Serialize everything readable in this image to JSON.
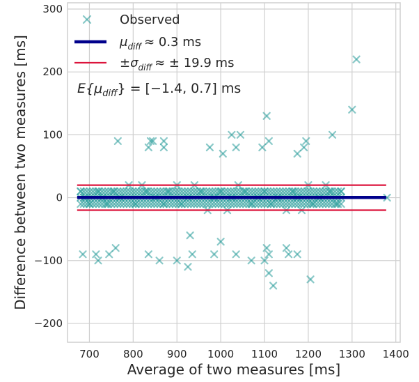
{
  "chart_data": {
    "type": "scatter",
    "xlabel": "Average of two measures [ms]",
    "ylabel": "Difference between two measures [ms]",
    "xlim": [
      650,
      1410
    ],
    "ylim": [
      -230,
      310
    ],
    "xticks": [
      700,
      800,
      900,
      1000,
      1100,
      1200,
      1300,
      1400
    ],
    "yticks": [
      -200,
      -100,
      0,
      100,
      200,
      300
    ],
    "grid": true,
    "legend_placement": "top-left",
    "colors": {
      "points": "#2a9d9b",
      "mean_line": "#00008b",
      "sd_lines": "#dc143c",
      "grid": "#cfcfcf",
      "frame": "#cfcfcf"
    },
    "legend": [
      {
        "marker": "x",
        "label": "Observed"
      },
      {
        "marker": "thick-line",
        "label_main": "μ",
        "label_sub": "diff",
        "label_rest": "≈ 0.3 ms"
      },
      {
        "marker": "thin-line",
        "label_pre": "±σ",
        "label_sub": "diff",
        "label_rest": "≈ ± 19.9 ms"
      }
    ],
    "annotation": {
      "pre": "E{μ",
      "sub": "diff",
      "post": "} = [−1.4, 0.7] ms"
    },
    "mean_diff": 0.3,
    "sd_diff": 19.9,
    "line_x_range": [
      672,
      1378
    ],
    "series": [
      {
        "name": "Observed",
        "outliers": [
          [
            1310,
            220
          ],
          [
            1300,
            140
          ],
          [
            1105,
            130
          ],
          [
            1255,
            100
          ],
          [
            1025,
            100
          ],
          [
            1045,
            100
          ],
          [
            765,
            90
          ],
          [
            840,
            90
          ],
          [
            845,
            90
          ],
          [
            870,
            90
          ],
          [
            1110,
            90
          ],
          [
            1195,
            90
          ],
          [
            1190,
            80
          ],
          [
            835,
            80
          ],
          [
            870,
            80
          ],
          [
            975,
            80
          ],
          [
            1035,
            80
          ],
          [
            1095,
            80
          ],
          [
            1005,
            70
          ],
          [
            1175,
            70
          ],
          [
            930,
            -60
          ],
          [
            1000,
            -70
          ],
          [
            685,
            -90
          ],
          [
            715,
            -90
          ],
          [
            745,
            -90
          ],
          [
            835,
            -90
          ],
          [
            935,
            -90
          ],
          [
            985,
            -90
          ],
          [
            1035,
            -90
          ],
          [
            1110,
            -90
          ],
          [
            1155,
            -90
          ],
          [
            1175,
            -90
          ],
          [
            1105,
            -80
          ],
          [
            1150,
            -80
          ],
          [
            760,
            -80
          ],
          [
            720,
            -100
          ],
          [
            860,
            -100
          ],
          [
            900,
            -100
          ],
          [
            1070,
            -100
          ],
          [
            1100,
            -100
          ],
          [
            925,
            -110
          ],
          [
            1110,
            -120
          ],
          [
            1205,
            -130
          ],
          [
            1120,
            -140
          ]
        ],
        "band_points": [
          [
            680,
            10
          ],
          [
            690,
            0
          ],
          [
            700,
            -10
          ],
          [
            720,
            10
          ],
          [
            730,
            0
          ],
          [
            740,
            -10
          ],
          [
            755,
            10
          ],
          [
            770,
            0
          ],
          [
            790,
            20
          ],
          [
            805,
            -10
          ],
          [
            820,
            20
          ],
          [
            830,
            10
          ],
          [
            850,
            0
          ],
          [
            870,
            -10
          ],
          [
            880,
            10
          ],
          [
            900,
            20
          ],
          [
            910,
            -10
          ],
          [
            925,
            0
          ],
          [
            940,
            20
          ],
          [
            955,
            10
          ],
          [
            970,
            -20
          ],
          [
            985,
            0
          ],
          [
            1000,
            10
          ],
          [
            1015,
            -20
          ],
          [
            1025,
            0
          ],
          [
            1040,
            20
          ],
          [
            1055,
            10
          ],
          [
            1070,
            -10
          ],
          [
            1085,
            0
          ],
          [
            1100,
            10
          ],
          [
            1115,
            -10
          ],
          [
            1130,
            0
          ],
          [
            1150,
            -20
          ],
          [
            1165,
            10
          ],
          [
            1175,
            0
          ],
          [
            1185,
            -20
          ],
          [
            1200,
            20
          ],
          [
            1210,
            -10
          ],
          [
            1225,
            0
          ],
          [
            1240,
            20
          ],
          [
            1250,
            10
          ],
          [
            1265,
            -10
          ],
          [
            1275,
            10
          ],
          [
            1380,
            0
          ]
        ]
      }
    ]
  }
}
